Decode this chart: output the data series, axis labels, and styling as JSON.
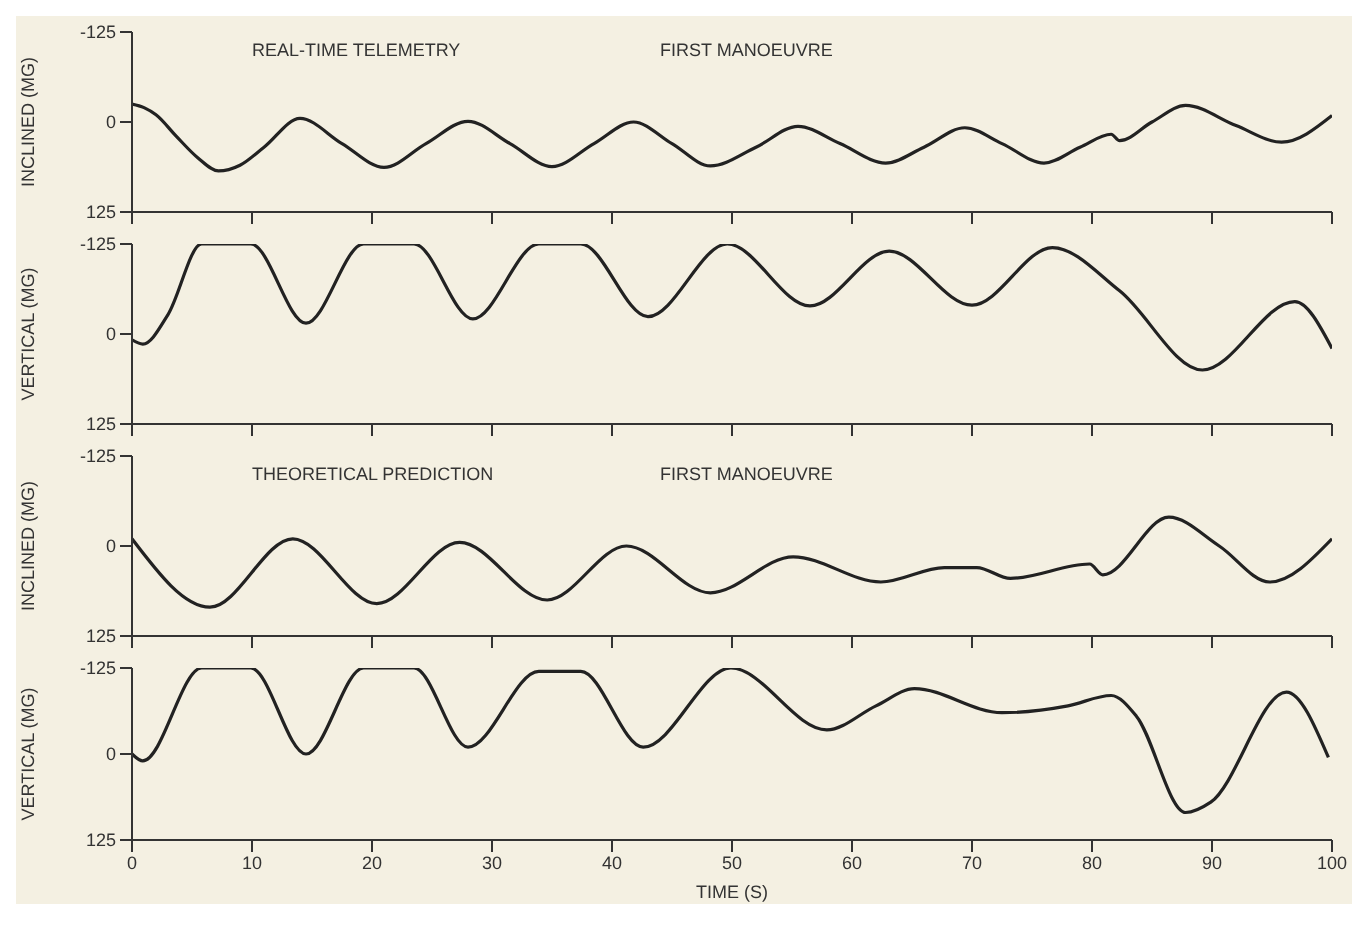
{
  "chart_data": [
    {
      "type": "line",
      "ylabel": "INCLINED (MG)",
      "annotations": [
        "REAL-TIME TELEMETRY",
        "FIRST MANOEUVRE"
      ],
      "color": "#222222",
      "line_style": "solid",
      "marker": "none",
      "tick_labels": "y",
      "x": [
        0,
        1,
        2,
        3.7,
        5.5,
        7.2,
        9,
        11,
        14,
        17.5,
        21,
        24.5,
        28,
        31.5,
        35,
        38.5,
        41.8,
        45,
        48.2,
        52,
        55.5,
        59,
        62.8,
        66,
        69.4,
        72.5,
        76,
        79,
        81.6,
        82.3,
        85,
        87.8,
        92,
        95.8,
        100
      ],
      "values": [
        -25,
        -20,
        -10,
        20,
        50,
        68,
        60,
        35,
        -5,
        30,
        63,
        30,
        -1,
        30,
        62,
        30,
        0,
        30,
        61,
        35,
        6,
        30,
        57,
        35,
        8,
        30,
        57,
        35,
        17,
        26,
        0,
        -23,
        5,
        28,
        -9
      ],
      "xlim": [
        0,
        100
      ],
      "xticks": [
        0,
        10,
        20,
        30,
        40,
        50,
        60,
        70,
        80,
        90,
        100
      ],
      "ylim": [
        125,
        -125
      ],
      "yticks": [
        -125,
        0,
        125
      ]
    },
    {
      "type": "line",
      "ylabel": "VERTICAL (MG)",
      "color": "#222222",
      "line_style": "solid",
      "marker": "none",
      "tick_labels": "y",
      "x": [
        0,
        0.9,
        3,
        5.8,
        9.9,
        14.5,
        19.3,
        23.5,
        28.4,
        33.9,
        37.4,
        43,
        49.6,
        56.5,
        63.1,
        70,
        76.7,
        82.3,
        89.2,
        96.9,
        100
      ],
      "values": [
        8,
        14,
        -27,
        -125,
        -125,
        -15,
        -125,
        -125,
        -21,
        -125,
        -125,
        -24,
        -125,
        -39,
        -115,
        -40,
        -120,
        -60,
        50,
        -45,
        20
      ],
      "xlim": [
        0,
        100
      ],
      "xticks": [
        0,
        10,
        20,
        30,
        40,
        50,
        60,
        70,
        80,
        90,
        100
      ],
      "ylim": [
        125,
        -125
      ],
      "yticks": [
        -125,
        0,
        125
      ]
    },
    {
      "type": "line",
      "ylabel": "INCLINED (MG)",
      "annotations": [
        "THEORETICAL PREDICTION",
        "FIRST MANOEUVRE"
      ],
      "color": "#222222",
      "line_style": "solid",
      "marker": "none",
      "tick_labels": "y",
      "x": [
        0,
        6.5,
        13.4,
        20.4,
        27.3,
        34.6,
        41.2,
        48.2,
        55.1,
        62.4,
        67.7,
        70.4,
        73.2,
        79.8,
        80.9,
        86.4,
        90.6,
        94.8,
        100
      ],
      "values": [
        -10,
        85,
        -10,
        80,
        -5,
        75,
        0,
        65,
        15,
        50,
        30,
        30,
        45,
        25,
        40,
        -40,
        0,
        50,
        -10
      ],
      "xlim": [
        0,
        100
      ],
      "xticks": [
        0,
        10,
        20,
        30,
        40,
        50,
        60,
        70,
        80,
        90,
        100
      ],
      "ylim": [
        125,
        -125
      ],
      "yticks": [
        -125,
        0,
        125
      ]
    },
    {
      "type": "line",
      "ylabel": "VERTICAL (MG)",
      "xlabel": "TIME (S)",
      "color": "#222222",
      "line_style": "solid",
      "marker": "none",
      "x": [
        0,
        0.9,
        5.8,
        9.9,
        14.5,
        19.3,
        23.5,
        28,
        33.9,
        37.4,
        42.6,
        49.9,
        57.9,
        62,
        65.2,
        72.5,
        78,
        81.6,
        83.7,
        87.8,
        89.9,
        96.2,
        99.7
      ],
      "values": [
        0,
        10,
        -125,
        -125,
        0,
        -125,
        -125,
        -10,
        -120,
        -120,
        -10,
        -125,
        -35,
        -70,
        -95,
        -60,
        -70,
        -85,
        -55,
        85,
        70,
        -90,
        5
      ],
      "xlim": [
        0,
        100
      ],
      "xticks": [
        0,
        10,
        20,
        30,
        40,
        50,
        60,
        70,
        80,
        90,
        100
      ],
      "ylim": [
        125,
        -125
      ],
      "yticks": [
        -125,
        0,
        125
      ]
    }
  ]
}
